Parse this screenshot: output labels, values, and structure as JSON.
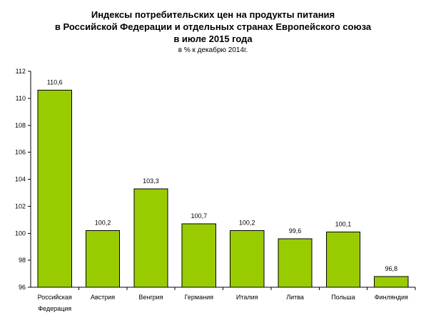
{
  "chart_data": {
    "type": "bar",
    "title_lines": [
      "Индексы потребительских цен на продукты питания",
      "в Российской Федерации и отдельных странах Европейского союза",
      "в июле 2015 года"
    ],
    "subtitle": "в % к декабрю 2014г.",
    "categories": [
      [
        "Российская",
        "Федерация"
      ],
      [
        "Австрия"
      ],
      [
        "Венгрия"
      ],
      [
        "Германия"
      ],
      [
        "Италия"
      ],
      [
        "Литва"
      ],
      [
        "Польша"
      ],
      [
        "Финляндия"
      ]
    ],
    "values": [
      110.6,
      100.2,
      103.3,
      100.7,
      100.2,
      99.6,
      100.1,
      96.8
    ],
    "data_labels": [
      "110,6",
      "100,2",
      "103,3",
      "100,7",
      "100,2",
      "99,6",
      "100,1",
      "96,8"
    ],
    "ylim": [
      96,
      112
    ],
    "yticks": [
      96,
      98,
      100,
      102,
      104,
      106,
      108,
      110,
      112
    ],
    "xlabel": "",
    "ylabel": "",
    "grid": false,
    "legend": "none",
    "bar_color": "#99cc00",
    "bar_edge_color": "#000000"
  }
}
